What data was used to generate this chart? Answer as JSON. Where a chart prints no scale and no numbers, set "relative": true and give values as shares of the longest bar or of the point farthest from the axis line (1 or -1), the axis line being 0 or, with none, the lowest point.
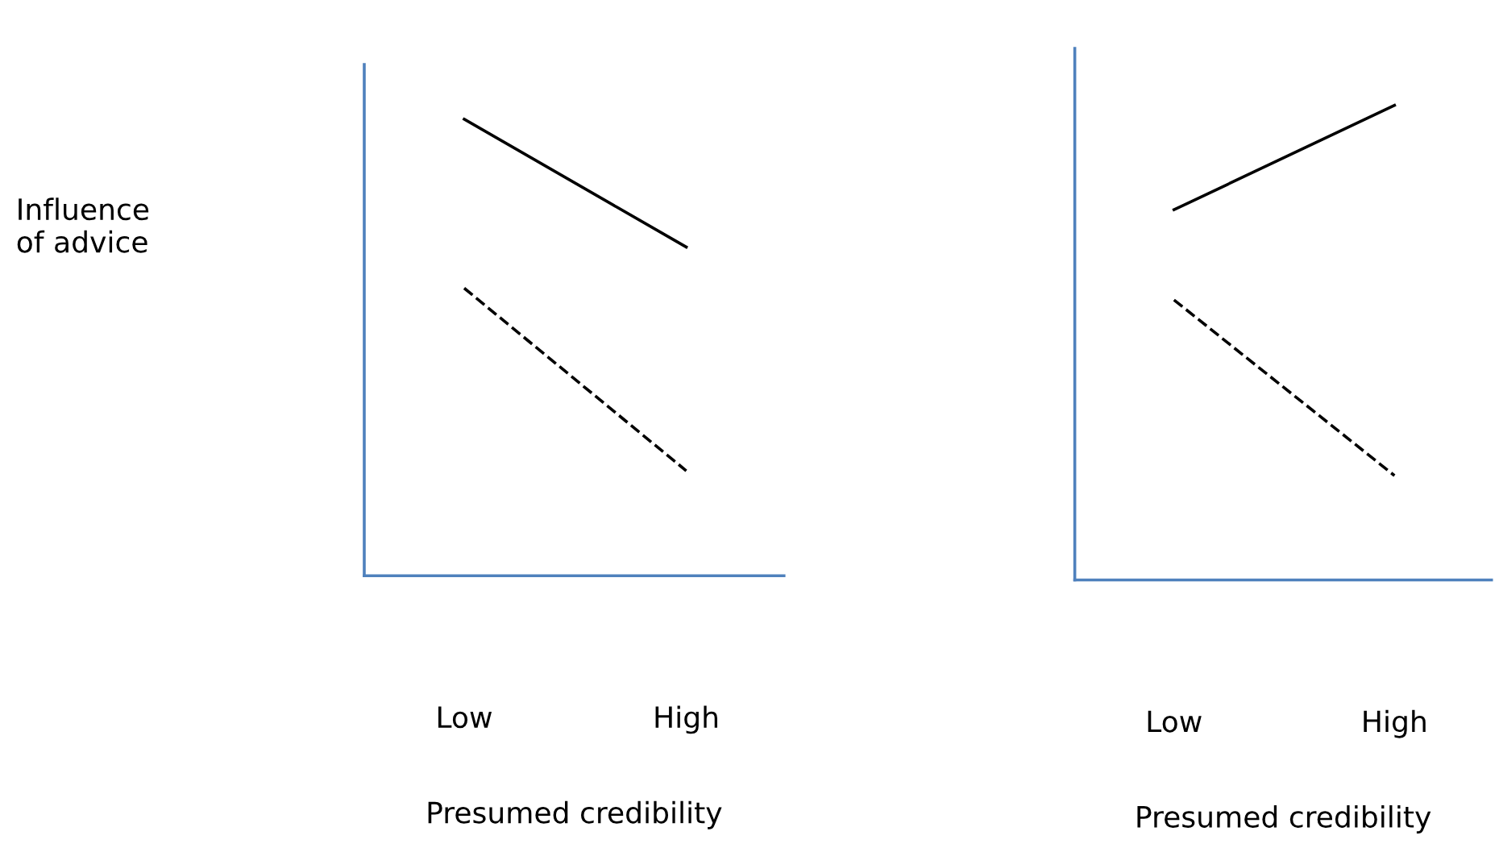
{
  "chart_data": [
    {
      "type": "line",
      "relative": true,
      "ylabel": "Influence\nof advice",
      "xlabel": "Presumed credibility",
      "categories": [
        "Low",
        "High"
      ],
      "legend": false,
      "grid": false,
      "marker": "none",
      "series": [
        {
          "color": "#000000",
          "line_style": "solid",
          "values": [
            1,
            0.72
          ]
        },
        {
          "color": "#000000",
          "line_style": "dashed",
          "values": [
            0.63,
            0.23
          ]
        }
      ]
    },
    {
      "type": "line",
      "relative": true,
      "xlabel": "Presumed credibility",
      "categories": [
        "Low",
        "High"
      ],
      "legend": false,
      "grid": false,
      "marker": "none",
      "series": [
        {
          "color": "#000000",
          "line_style": "solid",
          "values": [
            0.78,
            1
          ]
        },
        {
          "color": "#000000",
          "line_style": "dashed",
          "values": [
            0.59,
            0.22
          ]
        }
      ]
    }
  ]
}
